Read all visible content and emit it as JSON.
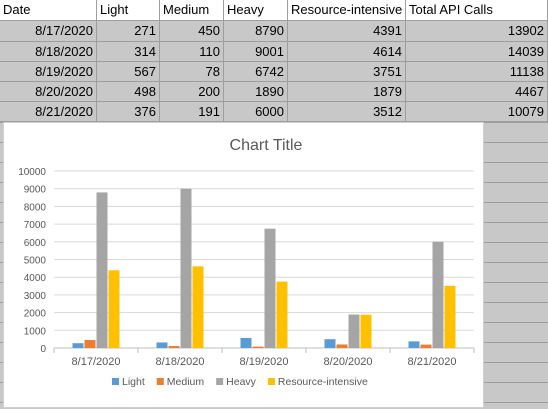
{
  "table": {
    "headers": [
      "Date",
      "Light",
      "Medium",
      "Heavy",
      "Resource-intensive",
      "Total API Calls"
    ],
    "rows": [
      [
        "8/17/2020",
        "271",
        "450",
        "8790",
        "4391",
        "13902"
      ],
      [
        "8/18/2020",
        "314",
        "110",
        "9001",
        "4614",
        "14039"
      ],
      [
        "8/19/2020",
        "567",
        "78",
        "6742",
        "3751",
        "11138"
      ],
      [
        "8/20/2020",
        "498",
        "200",
        "1890",
        "1879",
        "4467"
      ],
      [
        "8/21/2020",
        "376",
        "191",
        "6000",
        "3512",
        "10079"
      ]
    ]
  },
  "chart_data": {
    "type": "bar",
    "title": "Chart Title",
    "categories": [
      "8/17/2020",
      "8/18/2020",
      "8/19/2020",
      "8/20/2020",
      "8/21/2020"
    ],
    "series": [
      {
        "name": "Light",
        "color": "#5b9bd5",
        "values": [
          271,
          314,
          567,
          498,
          376
        ]
      },
      {
        "name": "Medium",
        "color": "#ed7d31",
        "values": [
          450,
          110,
          78,
          200,
          191
        ]
      },
      {
        "name": "Heavy",
        "color": "#a5a5a5",
        "values": [
          8790,
          9001,
          6742,
          1890,
          6000
        ]
      },
      {
        "name": "Resource-intensive",
        "color": "#ffc000",
        "values": [
          4391,
          4614,
          3751,
          1879,
          3512
        ]
      }
    ],
    "ylim": [
      0,
      10000
    ],
    "yticks": [
      0,
      1000,
      2000,
      3000,
      4000,
      5000,
      6000,
      7000,
      8000,
      9000,
      10000
    ],
    "grid": true,
    "legend_position": "bottom"
  }
}
